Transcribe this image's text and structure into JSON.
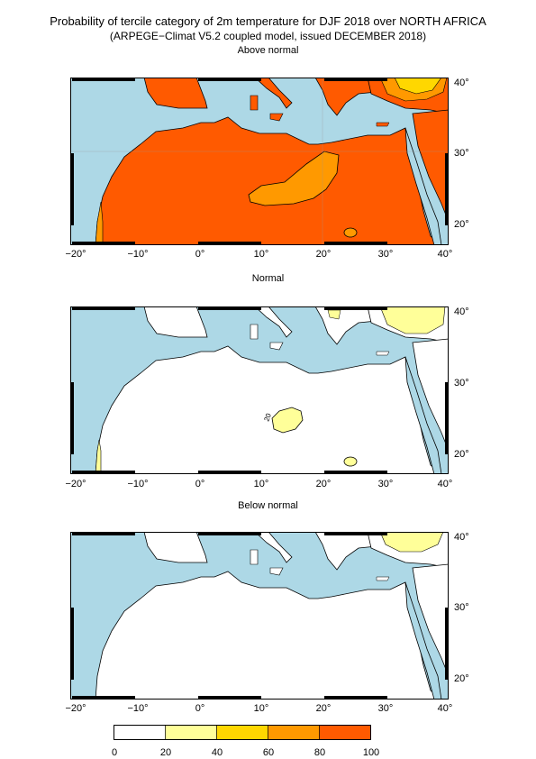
{
  "titles": {
    "line1": "Probability of tercile category of 2m temperature for DJF 2018 over NORTH AFRICA",
    "line2": "(ARPEGE−Climat V5.2 coupled model, issued DECEMBER  2018)"
  },
  "panels": [
    {
      "title": "Above normal"
    },
    {
      "title": "Normal"
    },
    {
      "title": "Below normal"
    }
  ],
  "axes": {
    "x_ticks": [
      "−20°",
      "−10°",
      "0°",
      "10°",
      "20°",
      "30°",
      "40°"
    ],
    "y_ticks": [
      "40°",
      "30°",
      "20°"
    ]
  },
  "contour_label": "20",
  "legend": {
    "labels": [
      "0",
      "20",
      "40",
      "60",
      "80",
      "100"
    ],
    "colors": [
      "#ffffff",
      "#ffff99",
      "#ffd700",
      "#ff9900",
      "#ff5a00"
    ]
  },
  "colors": {
    "sea": "#add8e6",
    "land_white": "#ffffff"
  }
}
